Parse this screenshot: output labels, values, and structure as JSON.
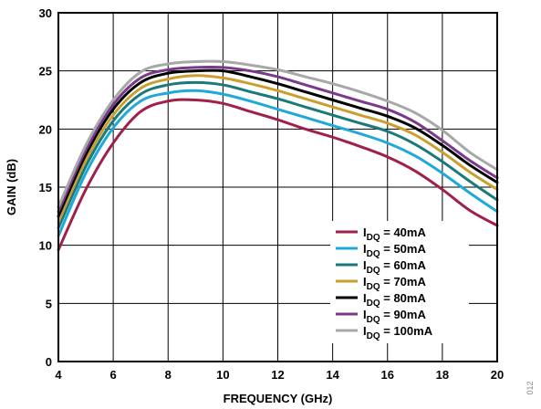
{
  "chart_data": {
    "type": "line",
    "title": "",
    "xlabel": "FREQUENCY (GHz)",
    "ylabel": "GAIN (dB)",
    "xlim": [
      4,
      20
    ],
    "ylim": [
      0,
      30
    ],
    "xticks": [
      4,
      6,
      8,
      10,
      12,
      14,
      16,
      18,
      20
    ],
    "yticks": [
      0,
      5,
      10,
      15,
      20,
      25,
      30
    ],
    "grid": true,
    "legend_position": "bottom-right",
    "figure_id": "012",
    "x": [
      4,
      5,
      6,
      7,
      8,
      9,
      10,
      11,
      12,
      13,
      14,
      15,
      16,
      17,
      18,
      19,
      20
    ],
    "series": [
      {
        "name": "I_DQ = 40mA",
        "label_main": "I",
        "label_sub": "DQ",
        "label_rest": " = 40mA",
        "color": "#a0204a",
        "values": [
          9.6,
          14.8,
          18.8,
          21.5,
          22.4,
          22.5,
          22.2,
          21.5,
          20.8,
          20.0,
          19.3,
          18.5,
          17.6,
          16.4,
          14.8,
          13.0,
          11.7
        ]
      },
      {
        "name": "I_DQ = 50mA",
        "label_main": "I",
        "label_sub": "DQ",
        "label_rest": " = 50mA",
        "color": "#1ea8dc",
        "values": [
          10.8,
          16.2,
          20.1,
          22.4,
          23.1,
          23.3,
          23.0,
          22.4,
          21.7,
          21.0,
          20.3,
          19.6,
          18.8,
          17.7,
          16.2,
          14.5,
          12.9
        ]
      },
      {
        "name": "I_DQ = 60mA",
        "label_main": "I",
        "label_sub": "DQ",
        "label_rest": " = 60mA",
        "color": "#1a7a7a",
        "values": [
          11.5,
          16.8,
          20.7,
          23.0,
          23.8,
          24.0,
          23.8,
          23.2,
          22.6,
          21.9,
          21.2,
          20.5,
          19.8,
          18.7,
          17.2,
          15.5,
          13.9
        ]
      },
      {
        "name": "I_DQ = 70mA",
        "label_main": "I",
        "label_sub": "DQ",
        "label_rest": " = 70mA",
        "color": "#c9a030",
        "values": [
          12.0,
          17.3,
          21.2,
          23.5,
          24.3,
          24.6,
          24.4,
          23.9,
          23.3,
          22.6,
          21.9,
          21.2,
          20.5,
          19.5,
          18.0,
          16.3,
          14.8
        ]
      },
      {
        "name": "I_DQ = 80mA",
        "label_main": "I",
        "label_sub": "DQ",
        "label_rest": " = 80mA",
        "color": "#000000",
        "values": [
          12.5,
          17.8,
          21.7,
          24.0,
          24.8,
          25.0,
          25.0,
          24.5,
          23.9,
          23.2,
          22.5,
          21.8,
          21.1,
          20.1,
          18.6,
          16.9,
          15.4
        ]
      },
      {
        "name": "I_DQ = 90mA",
        "label_main": "I",
        "label_sub": "DQ",
        "label_rest": " = 90mA",
        "color": "#7a3a8a",
        "values": [
          12.9,
          18.2,
          22.1,
          24.4,
          25.1,
          25.3,
          25.3,
          25.0,
          24.5,
          23.8,
          23.1,
          22.4,
          21.7,
          20.6,
          19.0,
          17.3,
          15.8
        ]
      },
      {
        "name": "I_DQ = 100mA",
        "label_main": "I",
        "label_sub": "DQ",
        "label_rest": " = 100mA",
        "color": "#a8a8a8",
        "values": [
          13.3,
          18.6,
          22.5,
          24.9,
          25.6,
          25.8,
          25.8,
          25.5,
          25.1,
          24.5,
          23.9,
          23.2,
          22.4,
          21.4,
          19.9,
          18.0,
          16.5
        ]
      }
    ]
  }
}
